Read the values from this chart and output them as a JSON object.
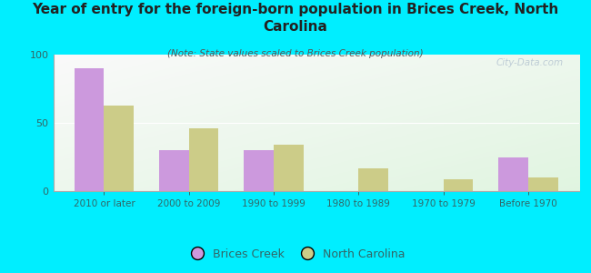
{
  "title": "Year of entry for the foreign-born population in Brices Creek, North\nCarolina",
  "subtitle": "(Note: State values scaled to Brices Creek population)",
  "categories": [
    "2010 or later",
    "2000 to 2009",
    "1990 to 1999",
    "1980 to 1989",
    "1970 to 1979",
    "Before 1970"
  ],
  "brices_creek": [
    90,
    30,
    30,
    0,
    0,
    25
  ],
  "north_carolina": [
    63,
    46,
    34,
    17,
    9,
    10
  ],
  "bar_color_brices": "#cc99dd",
  "bar_color_nc": "#cccc88",
  "background_outer": "#00eeff",
  "ylim": [
    0,
    100
  ],
  "yticks": [
    0,
    50,
    100
  ],
  "bar_width": 0.35,
  "legend_label_brices": "Brices Creek",
  "legend_label_nc": "North Carolina",
  "watermark": "City-Data.com",
  "title_fontsize": 11,
  "subtitle_fontsize": 7.5,
  "tick_label_fontsize": 7.5,
  "ytick_fontsize": 8
}
